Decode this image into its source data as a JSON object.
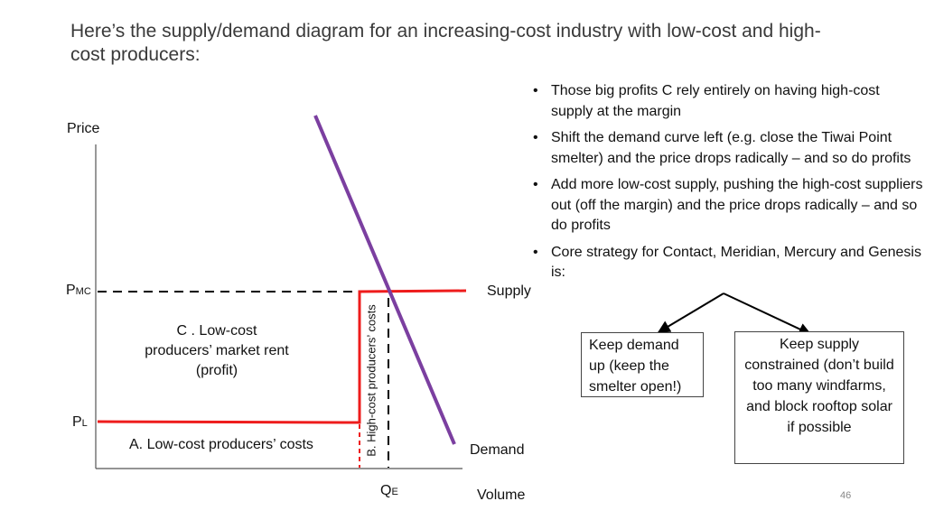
{
  "title": "Here’s the supply/demand diagram for an increasing-cost industry with low-cost and high-cost producers:",
  "diagram": {
    "price_axis": "Price",
    "volume_axis": "Volume",
    "pmc": {
      "main": "P",
      "sub": "MC"
    },
    "pl": {
      "main": "P",
      "sub": "L"
    },
    "qe": {
      "main": "Q",
      "sub": "E"
    },
    "supply_label": "Supply",
    "demand_label": "Demand",
    "region_c": "C .    Low-cost producers’ market rent (profit)",
    "region_a": "A.   Low-cost producers’ costs",
    "region_b": "B. High-cost producers’ costs",
    "colors": {
      "supply": "#ee1c1c",
      "demand": "#7b3fa0",
      "axis": "#555555",
      "dashed": "#000000"
    }
  },
  "bullets": [
    "Those big profits C rely entirely on having high-cost supply at the margin",
    "Shift the demand curve left (e.g. close the Tiwai Point smelter) and the price drops radically – and so do profits",
    "Add more low-cost supply, pushing the high-cost suppliers out (off the margin) and the price drops radically – and so do profits",
    "Core strategy for Contact, Meridian, Mercury and Genesis is:"
  ],
  "box_left": "Keep demand up (keep the smelter open!)",
  "box_right": "Keep supply constrained (don’t build too many windfarms, and block rooftop solar if possible",
  "page_number": "46"
}
